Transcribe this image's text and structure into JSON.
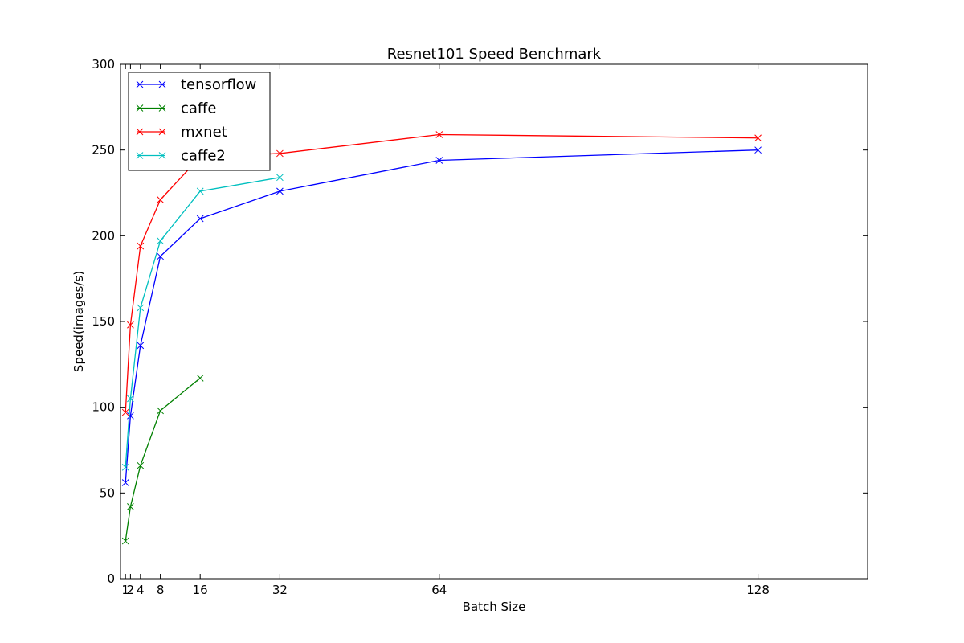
{
  "chart_data": {
    "type": "line",
    "title": "Resnet101 Speed Benchmark",
    "xlabel": "Batch Size",
    "ylabel": "Speed(images/s)",
    "xlim": [
      0,
      150
    ],
    "ylim": [
      0,
      300
    ],
    "xticks": [
      1,
      2,
      4,
      8,
      16,
      32,
      64,
      128
    ],
    "yticks": [
      0,
      50,
      100,
      150,
      200,
      250,
      300
    ],
    "grid": false,
    "legend_position": "top-left",
    "marker": "x",
    "series": [
      {
        "name": "tensorflow",
        "color": "#0000ff",
        "x": [
          1,
          2,
          4,
          8,
          16,
          32,
          64,
          128
        ],
        "y": [
          56,
          95,
          136,
          188,
          210,
          226,
          244,
          250
        ]
      },
      {
        "name": "caffe",
        "color": "#008000",
        "x": [
          1,
          2,
          4,
          8,
          16
        ],
        "y": [
          22,
          42,
          66,
          98,
          117
        ]
      },
      {
        "name": "mxnet",
        "color": "#ff0000",
        "x": [
          1,
          2,
          4,
          8,
          16,
          32,
          64,
          128
        ],
        "y": [
          97,
          148,
          194,
          221,
          246,
          248,
          259,
          257
        ]
      },
      {
        "name": "caffe2",
        "color": "#00bfbf",
        "x": [
          1,
          2,
          4,
          8,
          16,
          32
        ],
        "y": [
          65,
          105,
          158,
          197,
          226,
          234
        ]
      }
    ]
  }
}
